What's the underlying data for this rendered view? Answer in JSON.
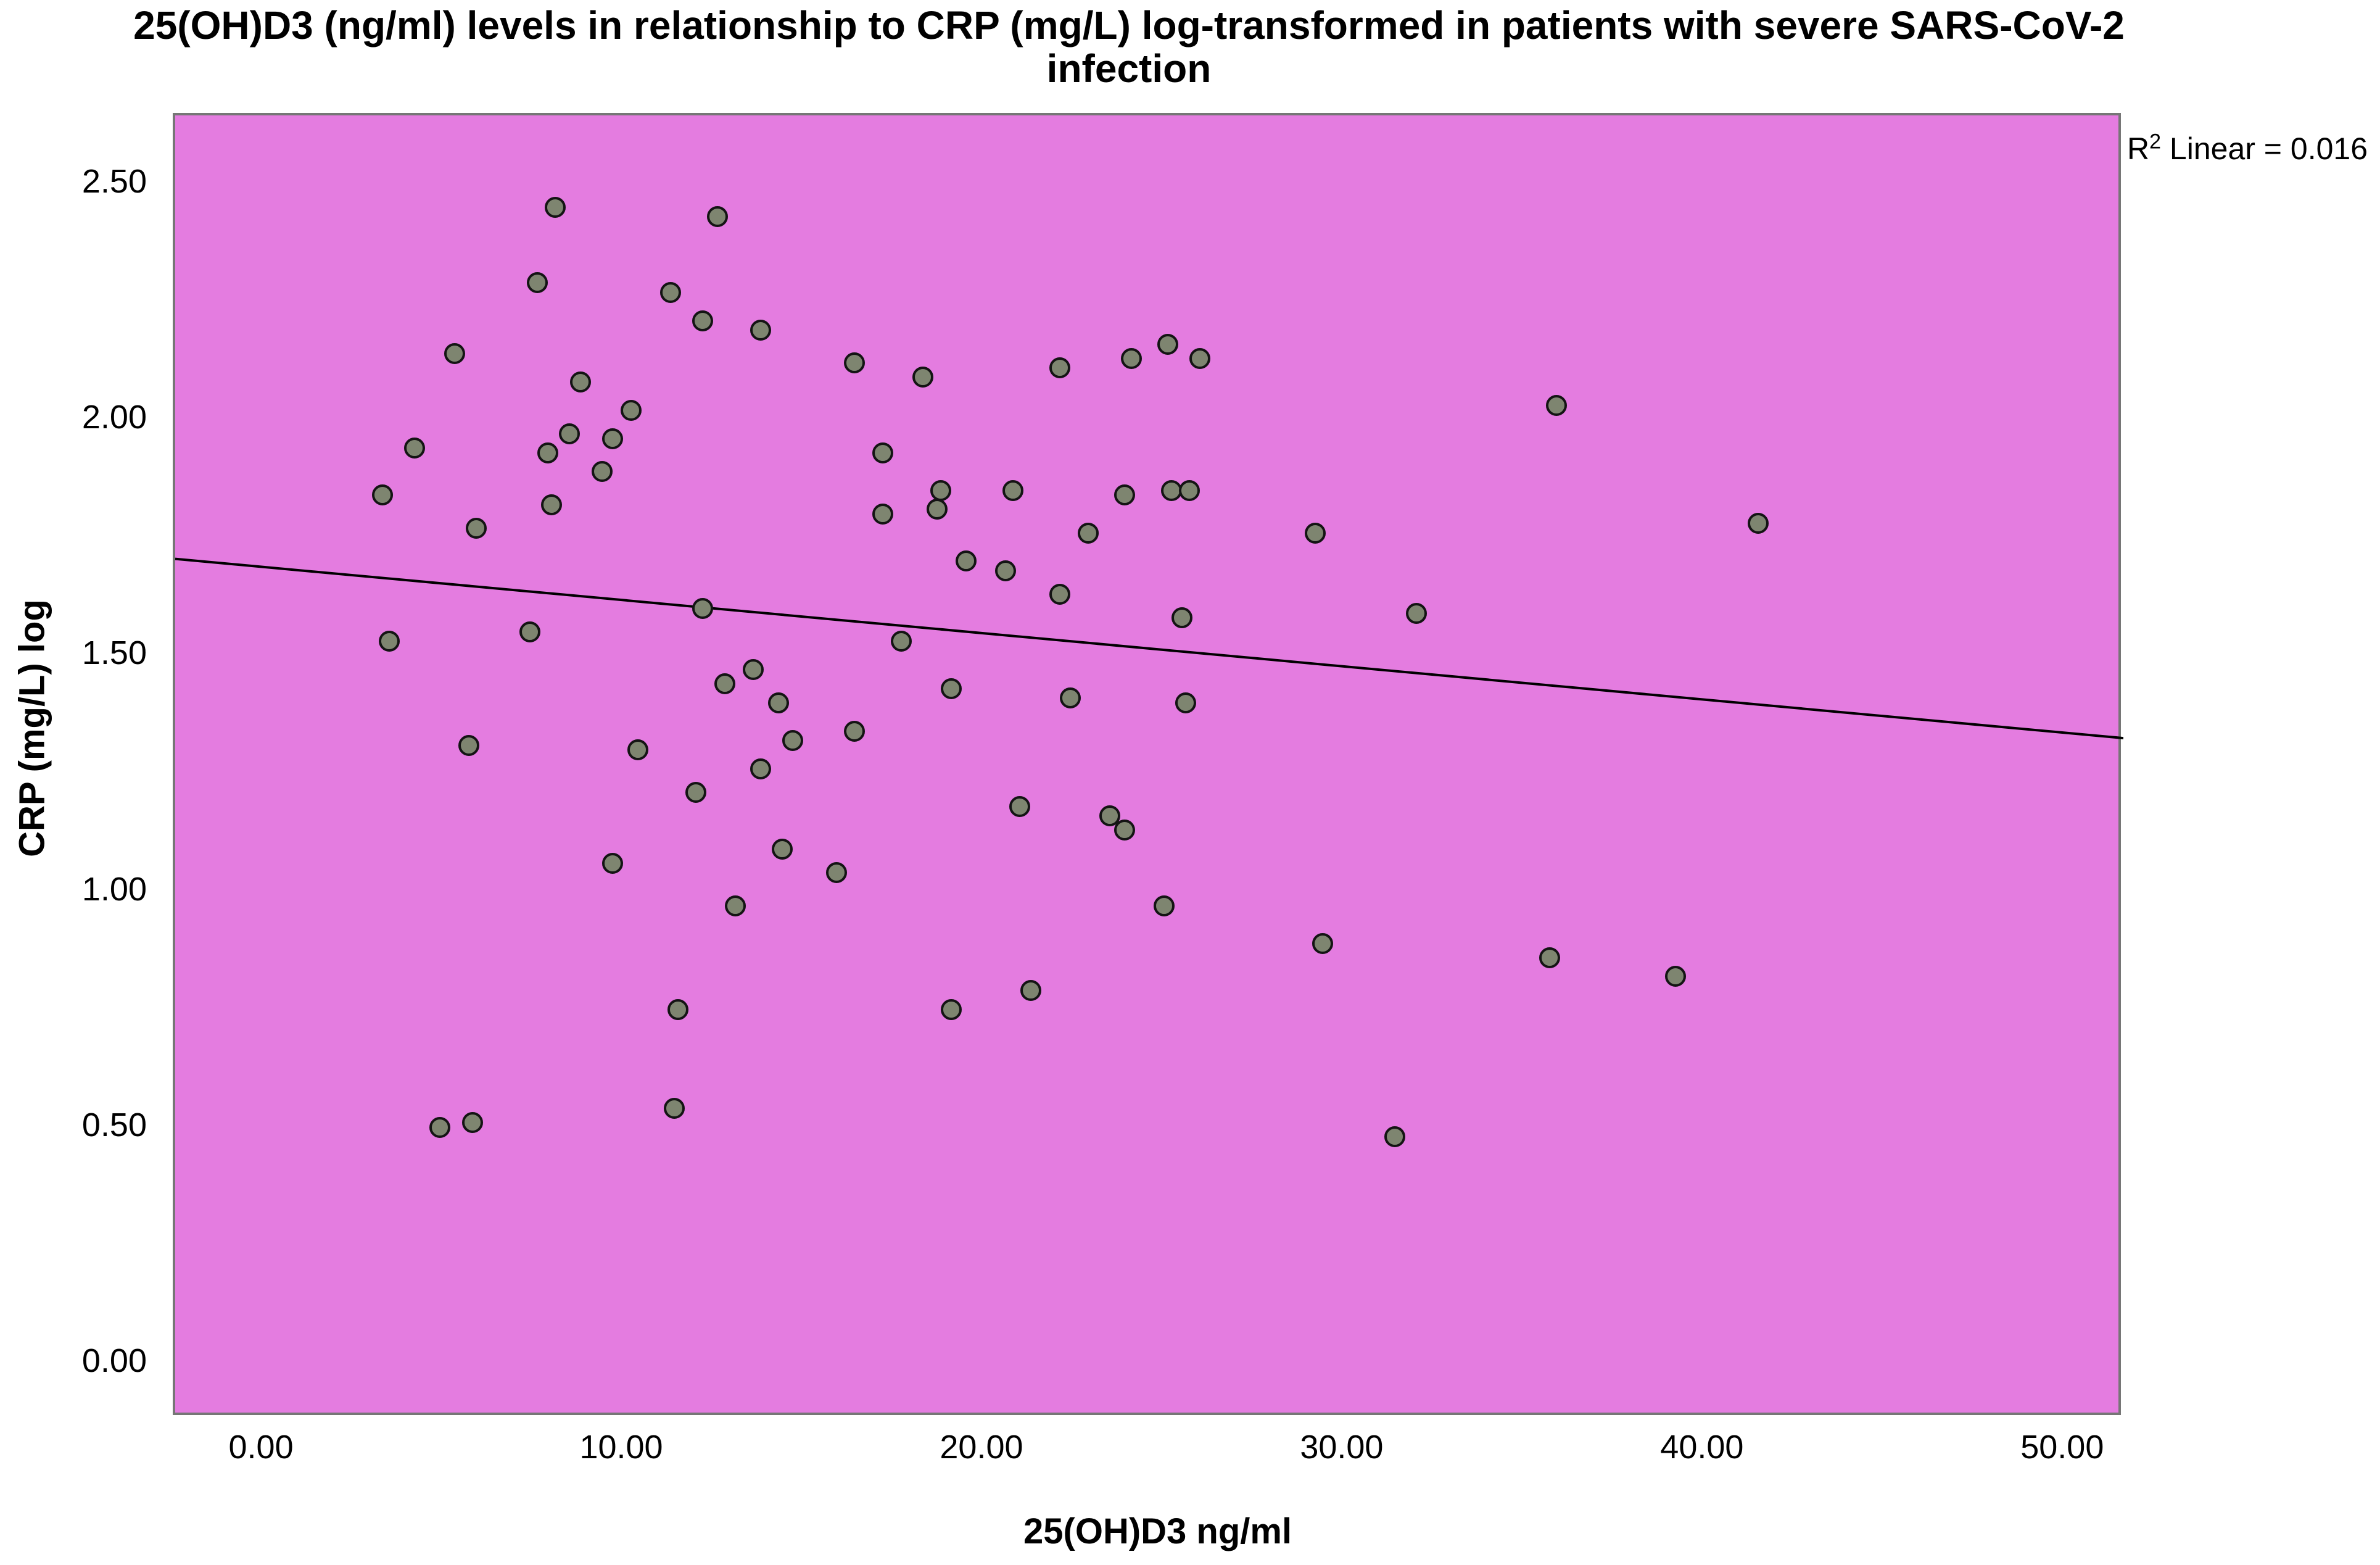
{
  "title_lines": [
    "25(OH)D3 (ng/ml) levels in relationship to CRP (mg/L) log-transformed in patients with severe SARS-CoV-2",
    "infection"
  ],
  "r2": {
    "base": "R",
    "sup": "2",
    "rest": " Linear = 0.016"
  },
  "x_axis": {
    "label": "25(OH)D3 ng/ml",
    "ticks": [
      {
        "label": "0.00",
        "value": 0
      },
      {
        "label": "10.00",
        "value": 10
      },
      {
        "label": "20.00",
        "value": 20
      },
      {
        "label": "30.00",
        "value": 30
      },
      {
        "label": "40.00",
        "value": 40
      },
      {
        "label": "50.00",
        "value": 50
      }
    ]
  },
  "y_axis": {
    "label": "CRP (mg/L) log",
    "ticks": [
      {
        "label": "0.00",
        "value": 0
      },
      {
        "label": "0.50",
        "value": 0.5
      },
      {
        "label": "1.00",
        "value": 1
      },
      {
        "label": "1.50",
        "value": 1.5
      },
      {
        "label": "2.00",
        "value": 2
      },
      {
        "label": "2.50",
        "value": 2.5
      }
    ]
  },
  "chart_data": {
    "type": "scatter",
    "title": "25(OH)D3 (ng/ml) levels in relationship to CRP (mg/L) log-transformed in patients with severe SARS-CoV-2 infection",
    "xlabel": "25(OH)D3 ng/ml",
    "ylabel": "CRP (mg/L) log",
    "xlim": [
      -2.45,
      51.63
    ],
    "ylim": [
      -0.115,
      2.645
    ],
    "x_ticks": [
      0,
      10,
      20,
      30,
      40,
      50
    ],
    "y_ticks": [
      0,
      0.5,
      1,
      1.5,
      2,
      2.5
    ],
    "grid": false,
    "legend": "none",
    "r2_text": "R2 Linear = 0.016",
    "r_squared": 0.016,
    "points": [
      [
        8.1,
        2.45
      ],
      [
        12.6,
        2.43
      ],
      [
        7.6,
        2.29
      ],
      [
        11.3,
        2.27
      ],
      [
        12.2,
        2.21
      ],
      [
        13.8,
        2.19
      ],
      [
        5.3,
        2.14
      ],
      [
        8.8,
        2.08
      ],
      [
        10.2,
        2.02
      ],
      [
        8.5,
        1.97
      ],
      [
        9.7,
        1.96
      ],
      [
        4.2,
        1.94
      ],
      [
        7.9,
        1.93
      ],
      [
        9.4,
        1.89
      ],
      [
        3.3,
        1.84
      ],
      [
        8.0,
        1.82
      ],
      [
        5.9,
        1.77
      ],
      [
        16.4,
        2.12
      ],
      [
        18.3,
        2.09
      ],
      [
        22.1,
        2.11
      ],
      [
        24.1,
        2.13
      ],
      [
        25.1,
        2.16
      ],
      [
        26.0,
        2.13
      ],
      [
        17.2,
        1.93
      ],
      [
        18.8,
        1.85
      ],
      [
        18.7,
        1.81
      ],
      [
        17.2,
        1.8
      ],
      [
        20.8,
        1.85
      ],
      [
        23.9,
        1.84
      ],
      [
        25.2,
        1.85
      ],
      [
        25.7,
        1.85
      ],
      [
        22.9,
        1.76
      ],
      [
        19.5,
        1.7
      ],
      [
        20.6,
        1.68
      ],
      [
        29.2,
        1.76
      ],
      [
        22.1,
        1.63
      ],
      [
        35.9,
        2.03
      ],
      [
        41.5,
        1.78
      ],
      [
        3.5,
        1.53
      ],
      [
        7.4,
        1.55
      ],
      [
        12.2,
        1.6
      ],
      [
        12.8,
        1.44
      ],
      [
        13.6,
        1.47
      ],
      [
        14.3,
        1.4
      ],
      [
        5.7,
        1.31
      ],
      [
        10.4,
        1.3
      ],
      [
        14.7,
        1.32
      ],
      [
        13.8,
        1.26
      ],
      [
        12.0,
        1.21
      ],
      [
        9.7,
        1.06
      ],
      [
        14.4,
        1.09
      ],
      [
        13.1,
        0.97
      ],
      [
        11.5,
        0.75
      ],
      [
        25.5,
        1.58
      ],
      [
        32.0,
        1.59
      ],
      [
        17.7,
        1.53
      ],
      [
        19.1,
        1.43
      ],
      [
        22.4,
        1.41
      ],
      [
        25.6,
        1.4
      ],
      [
        16.4,
        1.34
      ],
      [
        21.0,
        1.18
      ],
      [
        23.5,
        1.16
      ],
      [
        23.9,
        1.13
      ],
      [
        15.9,
        1.04
      ],
      [
        25.0,
        0.97
      ],
      [
        29.4,
        0.89
      ],
      [
        21.3,
        0.79
      ],
      [
        19.1,
        0.75
      ],
      [
        35.7,
        0.86
      ],
      [
        39.2,
        0.82
      ],
      [
        4.9,
        0.5
      ],
      [
        5.8,
        0.51
      ],
      [
        11.4,
        0.54
      ],
      [
        31.4,
        0.48
      ]
    ],
    "regression_line": {
      "x1": -2.45,
      "y1": 1.705,
      "x2": 51.63,
      "y2": 1.325
    },
    "colors": {
      "plot_background": "#E47CE0",
      "marker_fill": "#7E8570",
      "marker_stroke": "#141414",
      "regression_line": "#000000",
      "frame": "#767676",
      "text": "#000000",
      "page_background": "#FFFFFF"
    }
  }
}
